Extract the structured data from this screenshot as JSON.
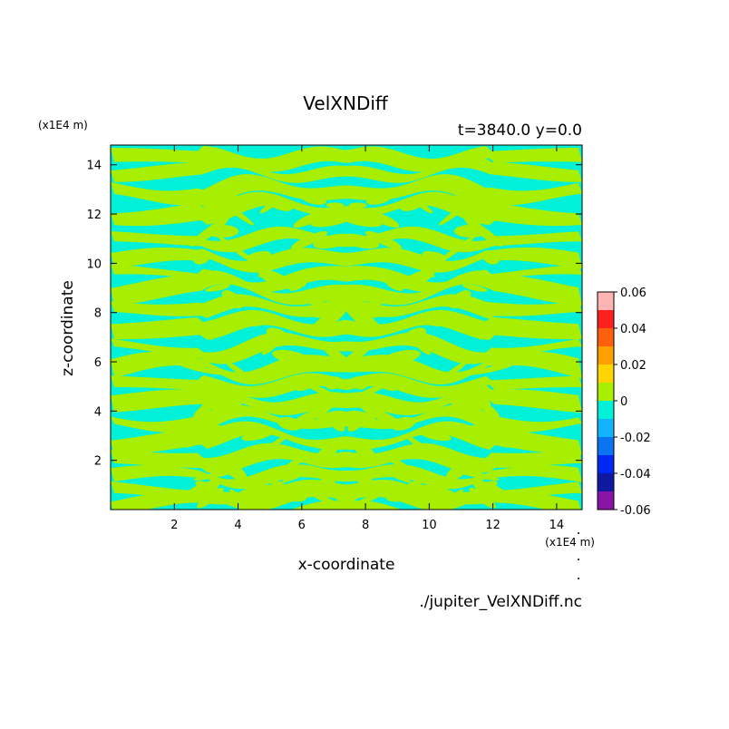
{
  "chart_data": {
    "type": "heatmap",
    "title": "VelXNDiff",
    "subtitle": "t=3840.0 y=0.0",
    "xlabel": "x-coordinate",
    "ylabel": "z-coordinate",
    "x_unit": "(x1E4 m)",
    "y_unit": "(x1E4 m)",
    "source": "./jupiter_VelXNDiff.nc",
    "xlim": [
      0,
      14.8
    ],
    "ylim": [
      0,
      14.8
    ],
    "x_ticks": [
      2,
      4,
      6,
      8,
      10,
      12,
      14
    ],
    "y_ticks": [
      2,
      4,
      6,
      8,
      10,
      12,
      14
    ],
    "colorbar": {
      "levels": [
        -0.06,
        -0.05,
        -0.04,
        -0.03,
        -0.02,
        -0.01,
        0,
        0.01,
        0.02,
        0.03,
        0.04,
        0.05,
        0.06
      ],
      "tick_values": [
        -0.06,
        -0.04,
        -0.02,
        0,
        0.02,
        0.04,
        0.06
      ],
      "tick_labels": [
        "-0.06",
        "-0.04",
        "-0.02",
        "0",
        "0.02",
        "0.04",
        "0.06"
      ],
      "colors": [
        "#8a14a8",
        "#1018a0",
        "#0028f0",
        "#0a74f2",
        "#12b4ff",
        "#00f0d8",
        "#a8ee00",
        "#ffd400",
        "#ffa000",
        "#ff6010",
        "#ff2020",
        "#ffb4b4"
      ]
    },
    "field_levels_present": [
      -0.01,
      0.01
    ],
    "field_colors": {
      "negative": "#00f0d8",
      "positive": "#a8ee00"
    },
    "field_description": "Alternating banded / striated pattern of two levels, mirror-symmetric about x=7.5"
  }
}
